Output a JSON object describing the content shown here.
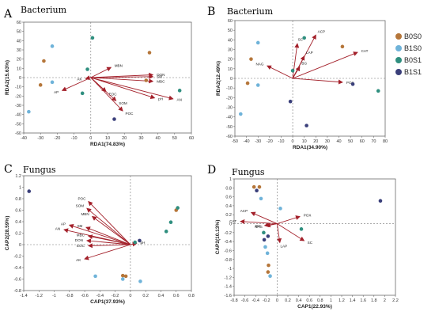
{
  "legend": {
    "items": [
      {
        "label": "B0S0",
        "color": "#b5763a"
      },
      {
        "label": "B1S0",
        "color": "#6fb3d9"
      },
      {
        "label": "B0S1",
        "color": "#2f8f7f"
      },
      {
        "label": "B1S1",
        "color": "#3a3f7a"
      }
    ]
  },
  "chart_data": [
    {
      "type": "scatter",
      "panel_label": "A",
      "title": "Bacterium",
      "xlabel": "RDA1(74.83%)",
      "ylabel": "RDA2(15.63%)",
      "xlim": [
        -40,
        60
      ],
      "ylim": [
        -60,
        60
      ],
      "xticks": [
        -40,
        -30,
        -20,
        -10,
        0,
        10,
        20,
        30,
        40,
        50,
        60
      ],
      "yticks": [
        -60,
        -50,
        -40,
        -30,
        -20,
        -10,
        0,
        10,
        20,
        30,
        40,
        50,
        60
      ],
      "points": [
        {
          "x": -23,
          "y": 34,
          "g": 1
        },
        {
          "x": -28,
          "y": 18,
          "g": 0
        },
        {
          "x": 1,
          "y": 43,
          "g": 2
        },
        {
          "x": -23,
          "y": -5,
          "g": 1
        },
        {
          "x": -30,
          "y": -8,
          "g": 0
        },
        {
          "x": -37,
          "y": -37,
          "g": 1
        },
        {
          "x": -2,
          "y": 9,
          "g": 2
        },
        {
          "x": -5,
          "y": -17,
          "g": 2
        },
        {
          "x": 35,
          "y": 27,
          "g": 0
        },
        {
          "x": 33,
          "y": -3,
          "g": 0
        },
        {
          "x": 53,
          "y": -14,
          "g": 2
        },
        {
          "x": 14,
          "y": -45,
          "g": 3
        }
      ],
      "arrows": [
        {
          "label": "MBN",
          "x": 12,
          "y": 11
        },
        {
          "label": "DON",
          "x": 37,
          "y": 3
        },
        {
          "label": "SM",
          "x": 37,
          "y": 1
        },
        {
          "label": "MBC",
          "x": 37,
          "y": -4
        },
        {
          "label": "AN",
          "x": 49,
          "y": -23
        },
        {
          "label": "pH",
          "x": 38,
          "y": -22
        },
        {
          "label": "EOC",
          "x": 9,
          "y": -15
        },
        {
          "label": "SOM",
          "x": 15,
          "y": -25
        },
        {
          "label": "POC",
          "x": 19,
          "y": -36
        },
        {
          "label": "AP",
          "x": -17,
          "y": -14
        },
        {
          "label": "AK",
          "x": -3,
          "y": -1
        }
      ]
    },
    {
      "type": "scatter",
      "panel_label": "B",
      "title": "Bacterium",
      "xlabel": "RDA1(34.90%)",
      "ylabel": "RDA2(12.49%)",
      "xlim": [
        -50,
        80
      ],
      "ylim": [
        -60,
        60
      ],
      "xticks": [
        -50,
        -40,
        -30,
        -20,
        -10,
        0,
        10,
        20,
        30,
        40,
        50,
        60,
        70,
        80
      ],
      "yticks": [
        -60,
        -50,
        -40,
        -30,
        -20,
        -10,
        0,
        10,
        20,
        30,
        40,
        50,
        60
      ],
      "points": [
        {
          "x": -30,
          "y": 37,
          "g": 1
        },
        {
          "x": -36,
          "y": 20,
          "g": 0
        },
        {
          "x": -39,
          "y": -5,
          "g": 0
        },
        {
          "x": -30,
          "y": -7,
          "g": 1
        },
        {
          "x": -45,
          "y": -37,
          "g": 1
        },
        {
          "x": 10,
          "y": 42,
          "g": 2
        },
        {
          "x": 43,
          "y": 33,
          "g": 0
        },
        {
          "x": 0,
          "y": 8,
          "g": 2
        },
        {
          "x": 52,
          "y": -6,
          "g": 3
        },
        {
          "x": 74,
          "y": -13,
          "g": 2
        },
        {
          "x": -2,
          "y": -24,
          "g": 3
        },
        {
          "x": 12,
          "y": -49,
          "g": 3
        }
      ],
      "arrows": [
        {
          "label": "ACP",
          "x": 20,
          "y": 45
        },
        {
          "label": "SC",
          "x": 4,
          "y": 36
        },
        {
          "label": "LAP",
          "x": 10,
          "y": 23
        },
        {
          "label": "CAT",
          "x": 56,
          "y": 27
        },
        {
          "label": "NAG",
          "x": -22,
          "y": 13
        },
        {
          "label": "POX",
          "x": 43,
          "y": -4
        },
        {
          "label": "BG",
          "x": 6,
          "y": 12
        }
      ]
    },
    {
      "type": "scatter",
      "panel_label": "C",
      "title": "Fungus",
      "xlabel": "CAP1(37.93%)",
      "ylabel": "CAP2(28.59%)",
      "xlim": [
        -1.4,
        0.8
      ],
      "ylim": [
        -0.8,
        1.2
      ],
      "xticks": [
        -1.4,
        -1.2,
        -1.0,
        -0.8,
        -0.6,
        -0.4,
        -0.2,
        0.0,
        0.2,
        0.4,
        0.6,
        0.8
      ],
      "yticks": [
        -0.8,
        -0.6,
        -0.4,
        -0.2,
        0.0,
        0.2,
        0.4,
        0.6,
        0.8,
        1.0,
        1.2
      ],
      "points": [
        {
          "x": -1.33,
          "y": 0.93,
          "g": 3
        },
        {
          "x": 0.6,
          "y": 0.6,
          "g": 0
        },
        {
          "x": 0.62,
          "y": 0.64,
          "g": 2
        },
        {
          "x": 0.53,
          "y": 0.39,
          "g": 2
        },
        {
          "x": 0.47,
          "y": 0.23,
          "g": 2
        },
        {
          "x": 0.12,
          "y": 0.07,
          "g": 3
        },
        {
          "x": 0.06,
          "y": 0.04,
          "g": 2
        },
        {
          "x": -0.46,
          "y": -0.55,
          "g": 1
        },
        {
          "x": -0.1,
          "y": -0.54,
          "g": 0
        },
        {
          "x": -0.06,
          "y": -0.55,
          "g": 0
        },
        {
          "x": -0.1,
          "y": -0.6,
          "g": 1
        },
        {
          "x": 0.13,
          "y": -0.64,
          "g": 1
        }
      ],
      "arrows": [
        {
          "label": "POC",
          "x": -0.55,
          "y": 0.75
        },
        {
          "label": "SOM",
          "x": -0.57,
          "y": 0.63
        },
        {
          "label": "MBN",
          "x": -0.5,
          "y": 0.49
        },
        {
          "label": "AP",
          "x": -0.8,
          "y": 0.34
        },
        {
          "label": "AN",
          "x": -0.87,
          "y": 0.26
        },
        {
          "label": "SM",
          "x": -0.58,
          "y": 0.3
        },
        {
          "label": "MBC",
          "x": -0.55,
          "y": 0.15
        },
        {
          "label": "DON",
          "x": -0.57,
          "y": 0.07
        },
        {
          "label": "EOC",
          "x": -0.55,
          "y": -0.02
        },
        {
          "label": "AK",
          "x": -0.6,
          "y": -0.25
        },
        {
          "label": "pH",
          "x": 0.08,
          "y": 0.02
        }
      ]
    },
    {
      "type": "scatter",
      "panel_label": "D",
      "title": "Fungus",
      "xlabel": "CAP1(22.93%)",
      "ylabel": "CAP2(10.13%)",
      "xlim": [
        -0.8,
        2.2
      ],
      "ylim": [
        -1.6,
        1.0
      ],
      "xticks": [
        -0.8,
        -0.6,
        -0.4,
        -0.2,
        0.0,
        0.2,
        0.4,
        0.6,
        0.8,
        1.0,
        1.2,
        1.4,
        1.6,
        1.8,
        2.0,
        2.2
      ],
      "yticks": [
        -1.6,
        -1.4,
        -1.2,
        -1.0,
        -0.8,
        -0.6,
        -0.4,
        -0.2,
        0.0,
        0.2,
        0.4,
        0.6,
        0.8,
        1.0
      ],
      "points": [
        {
          "x": -0.43,
          "y": 0.82,
          "g": 0
        },
        {
          "x": -0.33,
          "y": 0.82,
          "g": 0
        },
        {
          "x": -0.38,
          "y": 0.74,
          "g": 3
        },
        {
          "x": -0.3,
          "y": 0.56,
          "g": 1
        },
        {
          "x": 0.06,
          "y": 0.34,
          "g": 1
        },
        {
          "x": 1.92,
          "y": 0.51,
          "g": 3
        },
        {
          "x": 0.45,
          "y": -0.12,
          "g": 2
        },
        {
          "x": -0.25,
          "y": -0.2,
          "g": 2
        },
        {
          "x": -0.17,
          "y": -0.28,
          "g": 3
        },
        {
          "x": -0.24,
          "y": -0.36,
          "g": 3
        },
        {
          "x": -0.22,
          "y": -0.52,
          "g": 1
        },
        {
          "x": -0.18,
          "y": -0.66,
          "g": 1
        },
        {
          "x": -0.16,
          "y": -0.93,
          "g": 0
        },
        {
          "x": -0.17,
          "y": -1.08,
          "g": 0
        },
        {
          "x": -0.13,
          "y": -1.17,
          "g": 1
        }
      ],
      "arrows": [
        {
          "label": "ACP",
          "x": -0.48,
          "y": 0.25
        },
        {
          "label": "POX",
          "x": 0.42,
          "y": 0.16
        },
        {
          "label": "NAG",
          "x": -0.2,
          "y": -0.05
        },
        {
          "label": "BG",
          "x": -0.23,
          "y": -0.04
        },
        {
          "label": "CAT",
          "x": -0.68,
          "y": 0.05
        },
        {
          "label": "SC",
          "x": 0.5,
          "y": -0.38
        },
        {
          "label": "LAP",
          "x": 0.05,
          "y": -0.42
        }
      ]
    }
  ]
}
